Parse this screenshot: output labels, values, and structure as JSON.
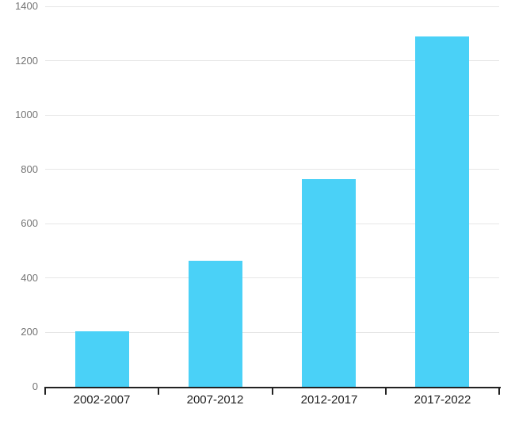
{
  "chart_data": {
    "type": "bar",
    "title": "",
    "xlabel": "",
    "ylabel": "",
    "categories": [
      "2002-2007",
      "2007-2012",
      "2012-2017",
      "2017-2022"
    ],
    "values": [
      203,
      464,
      763,
      1289
    ],
    "ylim": [
      0,
      1400
    ],
    "yticks": [
      0,
      200,
      400,
      600,
      800,
      1000,
      1200,
      1400
    ],
    "grid": true,
    "legend": false,
    "colors": {
      "bar": "#4ad1f7",
      "gridline": "#e6e6e6",
      "axis": "#222222",
      "y_tick_label": "#757575",
      "x_tick_label": "#212121",
      "background": "#ffffff"
    }
  }
}
